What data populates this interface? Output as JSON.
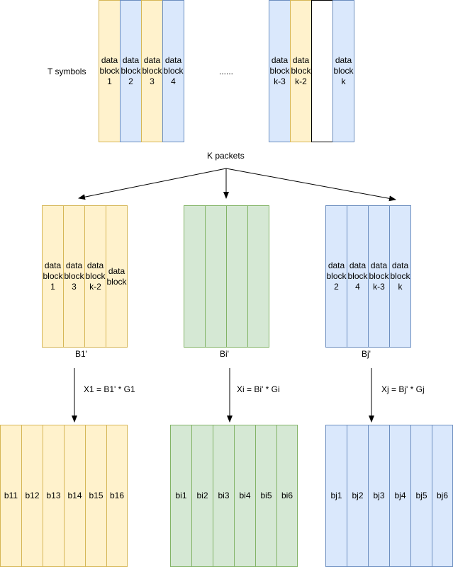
{
  "colors": {
    "yellow_fill": "#fff2cc",
    "yellow_stroke": "#d6b656",
    "blue_fill": "#dae8fc",
    "blue_stroke": "#6c8ebf",
    "green_fill": "#d5e8d4",
    "green_stroke": "#82b366",
    "white_fill": "#ffffff",
    "black_stroke": "#000000"
  },
  "top": {
    "t_symbols_label": "T symbols",
    "ellipsis": "......",
    "blocks": [
      {
        "text": "data\nblock\n1",
        "color": "yellow"
      },
      {
        "text": "data\nblock\n2",
        "color": "blue"
      },
      {
        "text": "data\nblock\n3",
        "color": "yellow"
      },
      {
        "text": "data\nblock\n4",
        "color": "blue"
      },
      {
        "text": "data\nblock\nk-3",
        "color": "blue"
      },
      {
        "text": "data\nblock\nk-2",
        "color": "yellow"
      },
      {
        "text": "",
        "color": "white"
      },
      {
        "text": "data\nblock\nk",
        "color": "blue"
      }
    ]
  },
  "k_packets_label": "K packets",
  "groups": [
    {
      "name": "B1'",
      "color": "yellow",
      "blocks": [
        "data\nblock\n1",
        "data\nblock\n3",
        "data\nblock\nk-2",
        "data\nblock"
      ],
      "formula": "X1 = B1' * G1",
      "outputs": [
        "b11",
        "b12",
        "b13",
        "b14",
        "b15",
        "b16"
      ]
    },
    {
      "name": "Bi'",
      "color": "green",
      "blocks": [
        "",
        "",
        "",
        ""
      ],
      "formula": "Xi = Bi' * Gi",
      "outputs": [
        "bi1",
        "bi2",
        "bi3",
        "bi4",
        "bi5",
        "bi6"
      ]
    },
    {
      "name": "Bj'",
      "color": "blue",
      "blocks": [
        "data\nblock\n2",
        "data\nblock\n4",
        "data\nblock\nk-3",
        "data\nblock\nk"
      ],
      "formula": "Xj = Bj' * Gj",
      "outputs": [
        "bj1",
        "bj2",
        "bj3",
        "bj4",
        "bj5",
        "bj6"
      ]
    }
  ]
}
